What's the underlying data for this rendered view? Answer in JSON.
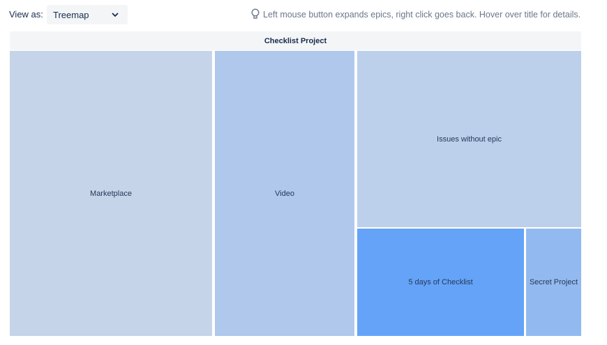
{
  "toolbar": {
    "view_label": "View as:",
    "view_value": "Treemap",
    "hint": "Left mouse button expands epics, right click goes back. Hover over title for details."
  },
  "treemap": {
    "title": "Checklist Project",
    "tiles": [
      {
        "label": "Marketplace"
      },
      {
        "label": "Video"
      },
      {
        "label": "Issues without epic"
      },
      {
        "label": "5 days of Checklist"
      },
      {
        "label": "Secret Project"
      }
    ]
  }
}
